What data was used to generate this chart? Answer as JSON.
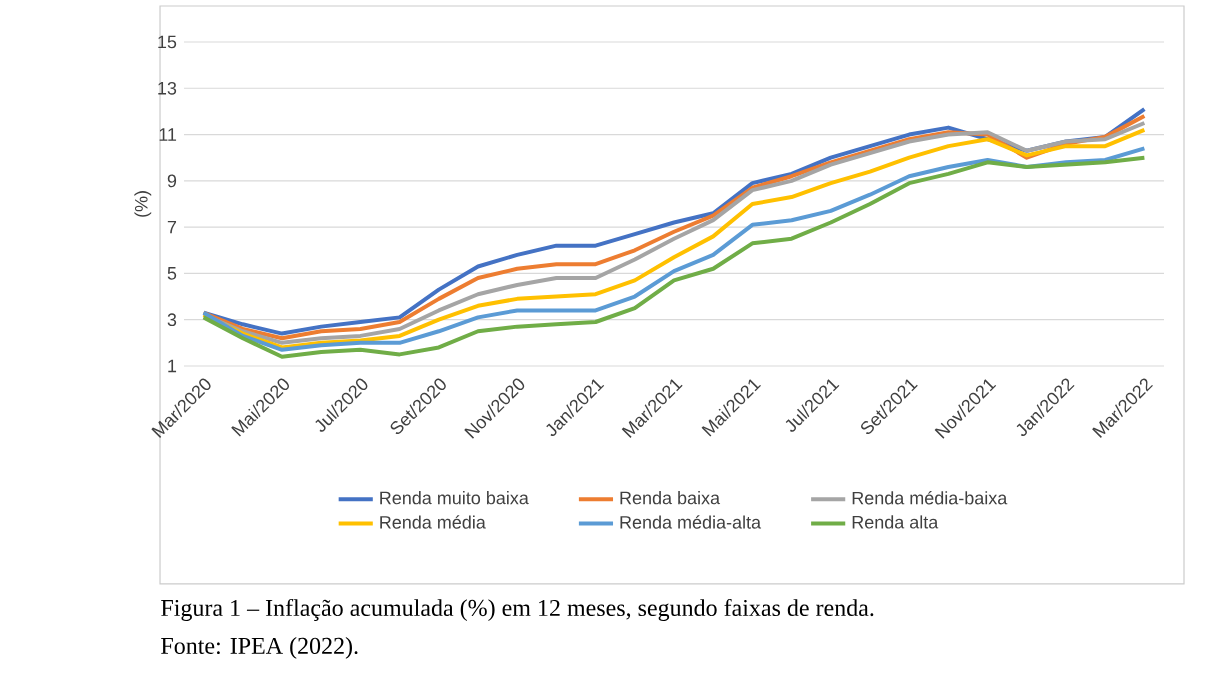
{
  "chart_data": {
    "type": "line",
    "categories": [
      "Mar/2020",
      null,
      "Mai/2020",
      null,
      "Jul/2020",
      null,
      "Set/2020",
      null,
      "Nov/2020",
      null,
      "Jan/2021",
      null,
      "Mar/2021",
      null,
      "Mai/2021",
      null,
      "Jul/2021",
      null,
      "Set/2021",
      null,
      "Nov/2021",
      null,
      "Jan/2022",
      null,
      "Mar/2022"
    ],
    "ylabel": "(%)",
    "ylim": [
      1,
      15
    ],
    "yticks": [
      1,
      3,
      5,
      7,
      9,
      11,
      13,
      15
    ],
    "grid": "y",
    "legend": "bottom",
    "series": [
      {
        "name": "Renda muito baixa",
        "color": "#4472c4",
        "values": [
          3.3,
          2.8,
          2.4,
          2.7,
          2.9,
          3.1,
          4.3,
          5.3,
          5.8,
          6.2,
          6.2,
          6.7,
          7.2,
          7.6,
          8.9,
          9.3,
          10.0,
          10.5,
          11.0,
          11.3,
          null,
          10.3,
          10.7,
          10.9,
          12.1
        ]
      },
      {
        "name": "Renda baixa",
        "color": "#ed7d31",
        "values": [
          3.3,
          2.6,
          2.2,
          2.5,
          2.6,
          2.9,
          3.9,
          4.8,
          5.2,
          5.4,
          5.4,
          6.0,
          6.8,
          7.5,
          8.7,
          9.2,
          9.8,
          10.3,
          10.8,
          11.1,
          11.0,
          10.0,
          10.6,
          10.9,
          11.8
        ]
      },
      {
        "name": "Renda média-baixa",
        "color": "#a5a5a5",
        "values": [
          3.2,
          2.5,
          2.0,
          2.2,
          2.3,
          2.6,
          3.4,
          4.1,
          4.5,
          4.8,
          4.8,
          5.6,
          6.5,
          7.3,
          8.6,
          9.0,
          9.7,
          10.2,
          10.7,
          11.0,
          11.1,
          10.3,
          10.7,
          10.8,
          11.5
        ]
      },
      {
        "name": "Renda média",
        "color": "#ffc000",
        "values": [
          3.2,
          2.4,
          1.8,
          2.0,
          2.1,
          2.3,
          3.0,
          3.6,
          3.9,
          4.0,
          4.1,
          4.7,
          5.7,
          6.6,
          8.0,
          8.3,
          8.9,
          9.4,
          10.0,
          10.5,
          10.8,
          10.1,
          10.5,
          10.5,
          11.2
        ]
      },
      {
        "name": "Renda média-alta",
        "color": "#5b9bd5",
        "values": [
          3.3,
          2.3,
          1.7,
          1.9,
          2.0,
          2.0,
          2.5,
          3.1,
          3.4,
          3.4,
          3.4,
          4.0,
          5.1,
          5.8,
          7.1,
          7.3,
          7.7,
          8.4,
          9.2,
          9.6,
          9.9,
          9.6,
          9.8,
          9.9,
          10.4
        ]
      },
      {
        "name": "Renda alta",
        "color": "#70ad47",
        "values": [
          3.1,
          2.2,
          1.4,
          1.6,
          1.7,
          1.5,
          1.8,
          2.5,
          2.7,
          2.8,
          2.9,
          3.5,
          4.7,
          5.2,
          6.3,
          6.5,
          7.2,
          8.0,
          8.9,
          9.3,
          9.8,
          9.6,
          9.7,
          9.8,
          10.0
        ]
      }
    ],
    "annotations": [
      "Figura 1 – Inflação acumulada (%) em 12 meses, segundo faixas de renda.",
      "Fonte: IPEA (2022)."
    ]
  }
}
